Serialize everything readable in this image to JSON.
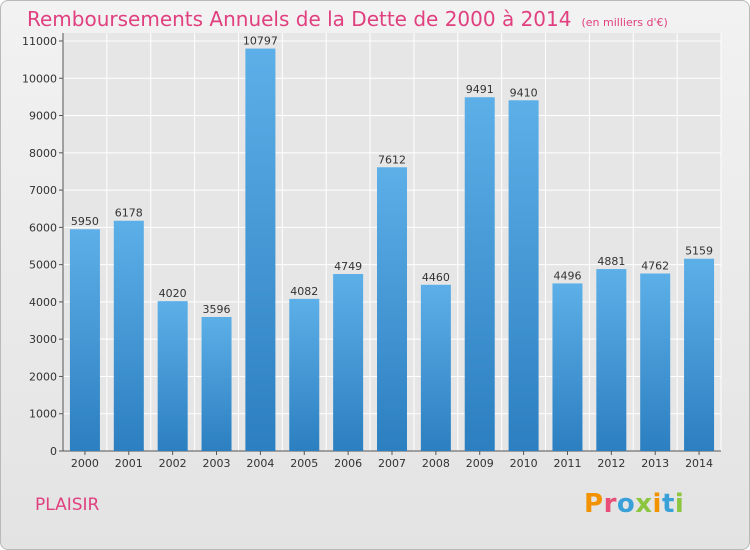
{
  "chart_data": {
    "type": "bar",
    "title": "Remboursements Annuels de la Dette de 2000 à 2014",
    "subtitle": "(en milliers d'€)",
    "categories": [
      "2000",
      "2001",
      "2002",
      "2003",
      "2004",
      "2005",
      "2006",
      "2007",
      "2008",
      "2009",
      "2010",
      "2011",
      "2012",
      "2013",
      "2014"
    ],
    "values": [
      5950,
      6178,
      4020,
      3596,
      10797,
      4082,
      4749,
      7612,
      4460,
      9491,
      9410,
      4496,
      4881,
      4762,
      5159
    ],
    "ylim": [
      0,
      11000
    ],
    "yticks": [
      0,
      1000,
      2000,
      3000,
      4000,
      5000,
      6000,
      7000,
      8000,
      9000,
      10000,
      11000
    ],
    "grid": true,
    "bar_color": "#3d97d8"
  },
  "commune": "PLAISIR",
  "logo": {
    "text": "Proxiti",
    "letters": [
      {
        "ch": "P",
        "color": "#f39200"
      },
      {
        "ch": "r",
        "color": "#e94e77"
      },
      {
        "ch": "o",
        "color": "#3aa0d8"
      },
      {
        "ch": "x",
        "color": "#8cc63f"
      },
      {
        "ch": "i",
        "color": "#f39200"
      },
      {
        "ch": "t",
        "color": "#3aa0d8"
      },
      {
        "ch": "i",
        "color": "#8cc63f"
      }
    ]
  }
}
